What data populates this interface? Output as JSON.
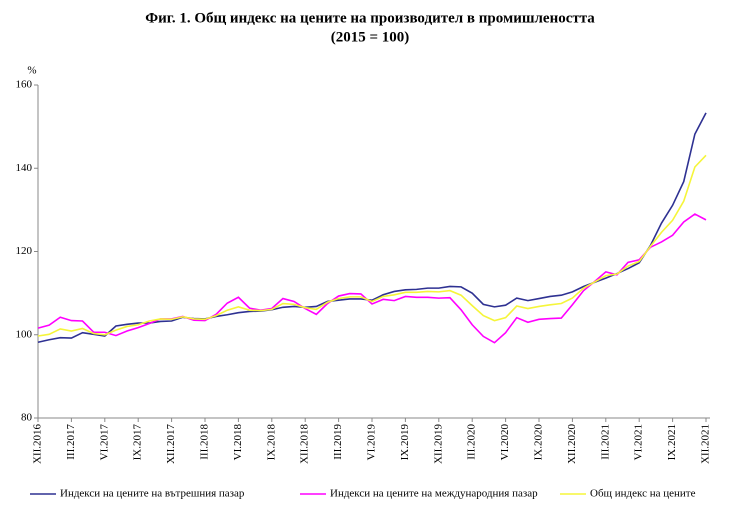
{
  "chart_data": {
    "type": "line",
    "title": "Фиг. 1. Общ индекс на цените на производител в промишлеността",
    "subtitle": "(2015 = 100)",
    "ylabel": "%",
    "categories": [
      "XII.2016",
      null,
      null,
      "III.2017",
      null,
      null,
      "VI.2017",
      null,
      null,
      "IX.2017",
      null,
      null,
      "XII.2017",
      null,
      null,
      "III.2018",
      null,
      null,
      "VI.2018",
      null,
      null,
      "IX.2018",
      null,
      null,
      "XII.2018",
      null,
      null,
      "III.2019",
      null,
      null,
      "VI.2019",
      null,
      null,
      "IX.2019",
      null,
      null,
      "XII.2019",
      null,
      null,
      "III.2020",
      null,
      null,
      "VI.2020",
      null,
      null,
      "IX.2020",
      null,
      null,
      "XII.2020",
      null,
      null,
      "III.2021",
      null,
      null,
      "VI.2021",
      null,
      null,
      "IX.2021",
      null,
      null,
      "XII.2021"
    ],
    "series": [
      {
        "name": "Индекси на цените на вътрешния пазар",
        "color": "#2e3192",
        "values": [
          98.2,
          98.8,
          99.3,
          99.2,
          100.5,
          100.1,
          99.7,
          102.1,
          102.5,
          102.8,
          102.8,
          103.2,
          103.3,
          104.2,
          103.9,
          103.8,
          104.4,
          104.8,
          105.3,
          105.6,
          105.7,
          106.0,
          106.6,
          106.8,
          106.6,
          106.8,
          108.0,
          108.3,
          108.6,
          108.6,
          108.3,
          109.6,
          110.4,
          110.8,
          110.9,
          111.2,
          111.2,
          111.6,
          111.5,
          110.0,
          107.3,
          106.7,
          107.1,
          108.8,
          108.2,
          108.7,
          109.2,
          109.5,
          110.3,
          111.6,
          112.6,
          113.6,
          114.7,
          115.9,
          117.3,
          121.4,
          126.8,
          131.1,
          136.8,
          148.2,
          153.3
        ]
      },
      {
        "name": "Индекси на цените на международния пазар",
        "color": "#ff00ff",
        "values": [
          101.6,
          102.3,
          104.2,
          103.4,
          103.3,
          100.6,
          100.6,
          99.8,
          100.9,
          101.7,
          102.7,
          103.8,
          103.8,
          104.4,
          103.5,
          103.4,
          104.9,
          107.6,
          109.0,
          106.4,
          105.9,
          106.3,
          108.7,
          108.0,
          106.3,
          104.9,
          107.5,
          109.3,
          109.9,
          109.8,
          107.4,
          108.5,
          108.2,
          109.2,
          109.0,
          109.0,
          108.8,
          108.9,
          106.0,
          102.4,
          99.6,
          98.1,
          100.5,
          104.1,
          103.0,
          103.7,
          103.9,
          104.0,
          107.2,
          110.6,
          112.8,
          115.1,
          114.4,
          117.4,
          118.0,
          121.0,
          122.3,
          123.9,
          127.1,
          129.0,
          127.6
        ]
      },
      {
        "name": "Общ индекс на цените",
        "color": "#f5f53a",
        "values": [
          99.7,
          100.1,
          101.4,
          100.9,
          101.5,
          100.3,
          100.0,
          101.1,
          102.0,
          102.4,
          103.3,
          103.8,
          103.7,
          104.3,
          103.8,
          103.7,
          104.6,
          105.9,
          106.7,
          105.9,
          105.8,
          106.1,
          107.5,
          107.3,
          106.5,
          106.1,
          107.8,
          108.7,
          109.1,
          109.1,
          108.0,
          109.2,
          109.6,
          110.2,
          110.2,
          110.4,
          110.3,
          110.6,
          109.5,
          107.0,
          104.6,
          103.4,
          104.1,
          106.9,
          106.3,
          106.8,
          107.2,
          107.5,
          108.8,
          111.2,
          112.7,
          114.2,
          114.6,
          116.5,
          117.6,
          121.2,
          124.6,
          127.5,
          132.1,
          140.3,
          143.1
        ]
      }
    ],
    "ylim": [
      80,
      160
    ],
    "yticks": [
      80,
      100,
      120,
      140,
      160
    ],
    "grid": false
  }
}
